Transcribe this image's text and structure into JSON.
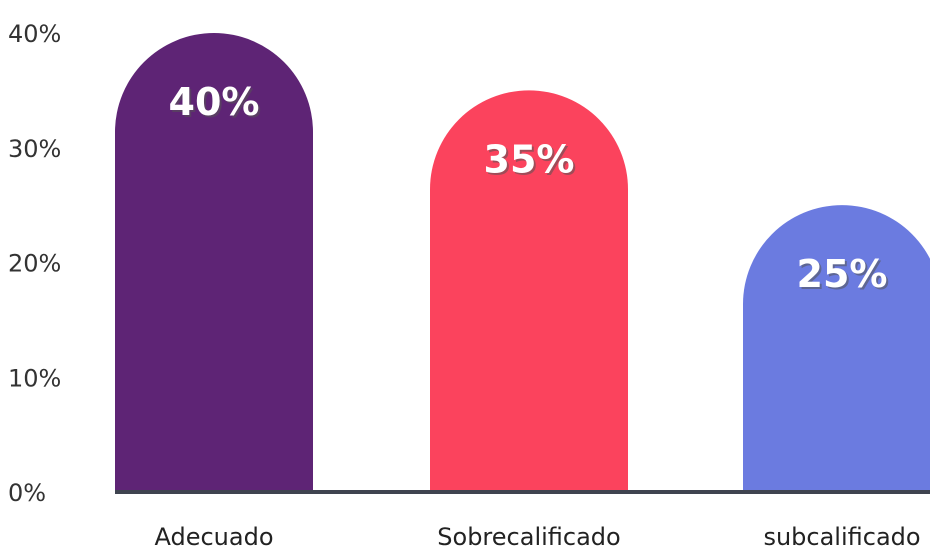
{
  "chart_data": {
    "type": "bar",
    "categories": [
      "Adecuado",
      "Sobrecalificado",
      "subcalificado"
    ],
    "values": [
      40,
      35,
      25
    ],
    "value_labels": [
      "40%",
      "35%",
      "25%"
    ],
    "colors": [
      "#5E2475",
      "#FB435D",
      "#6B7BE0"
    ],
    "ylim": [
      0,
      40
    ],
    "yticks": [
      {
        "value": 0,
        "label": "0%"
      },
      {
        "value": 10,
        "label": "10%"
      },
      {
        "value": 20,
        "label": "20%"
      },
      {
        "value": 30,
        "label": "30%"
      },
      {
        "value": 40,
        "label": "40%"
      }
    ],
    "grid": false,
    "legend": "none",
    "bar_shape": "rounded-top",
    "axis_color": "#3F4450"
  }
}
